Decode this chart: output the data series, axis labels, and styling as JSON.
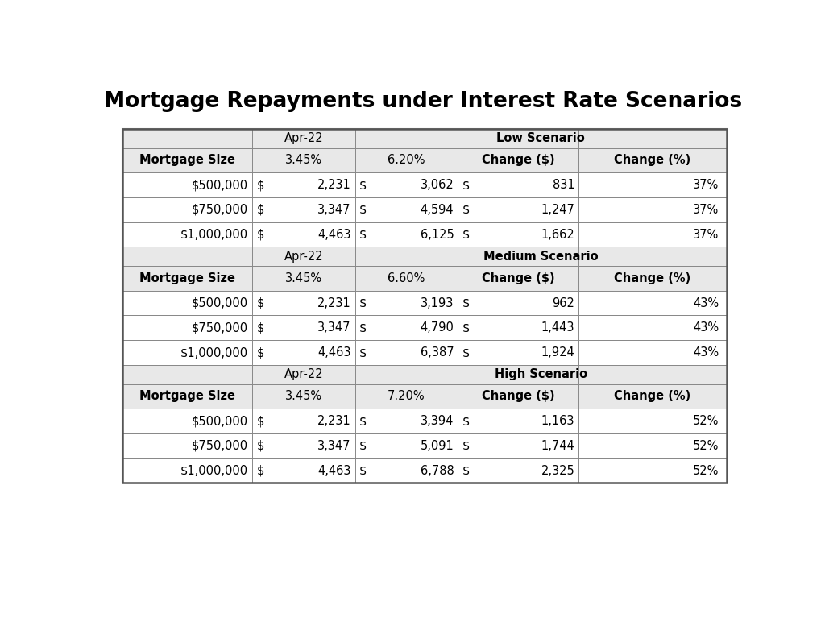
{
  "title": "Mortgage Repayments under Interest Rate Scenarios",
  "title_fontsize": 19,
  "title_fontweight": "bold",
  "background_color": "#ffffff",
  "table_outer_bg": "#e8e8e8",
  "header_row_bg": "#e8e8e8",
  "data_row_bg": "#ffffff",
  "border_color": "#888888",
  "scenarios": [
    {
      "scenario_label": "Low Scenario",
      "apr22_rate": "3.45%",
      "scenario_rate": "6.20%",
      "rows": [
        {
          "mortgage": "$500,000",
          "apr22": "2,231",
          "scenario": "3,062",
          "change_dollar": "831",
          "change_pct": "37%"
        },
        {
          "mortgage": "$750,000",
          "apr22": "3,347",
          "scenario": "4,594",
          "change_dollar": "1,247",
          "change_pct": "37%"
        },
        {
          "mortgage": "$1,000,000",
          "apr22": "4,463",
          "scenario": "6,125",
          "change_dollar": "1,662",
          "change_pct": "37%"
        }
      ]
    },
    {
      "scenario_label": "Medium Scenario",
      "apr22_rate": "3.45%",
      "scenario_rate": "6.60%",
      "rows": [
        {
          "mortgage": "$500,000",
          "apr22": "2,231",
          "scenario": "3,193",
          "change_dollar": "962",
          "change_pct": "43%"
        },
        {
          "mortgage": "$750,000",
          "apr22": "3,347",
          "scenario": "4,790",
          "change_dollar": "1,443",
          "change_pct": "43%"
        },
        {
          "mortgage": "$1,000,000",
          "apr22": "4,463",
          "scenario": "6,387",
          "change_dollar": "1,924",
          "change_pct": "43%"
        }
      ]
    },
    {
      "scenario_label": "High Scenario",
      "apr22_rate": "3.45%",
      "scenario_rate": "7.20%",
      "rows": [
        {
          "mortgage": "$500,000",
          "apr22": "2,231",
          "scenario": "3,394",
          "change_dollar": "1,163",
          "change_pct": "52%"
        },
        {
          "mortgage": "$750,000",
          "apr22": "3,347",
          "scenario": "5,091",
          "change_dollar": "1,744",
          "change_pct": "52%"
        },
        {
          "mortgage": "$1,000,000",
          "apr22": "4,463",
          "scenario": "6,788",
          "change_dollar": "2,325",
          "change_pct": "52%"
        }
      ]
    }
  ]
}
